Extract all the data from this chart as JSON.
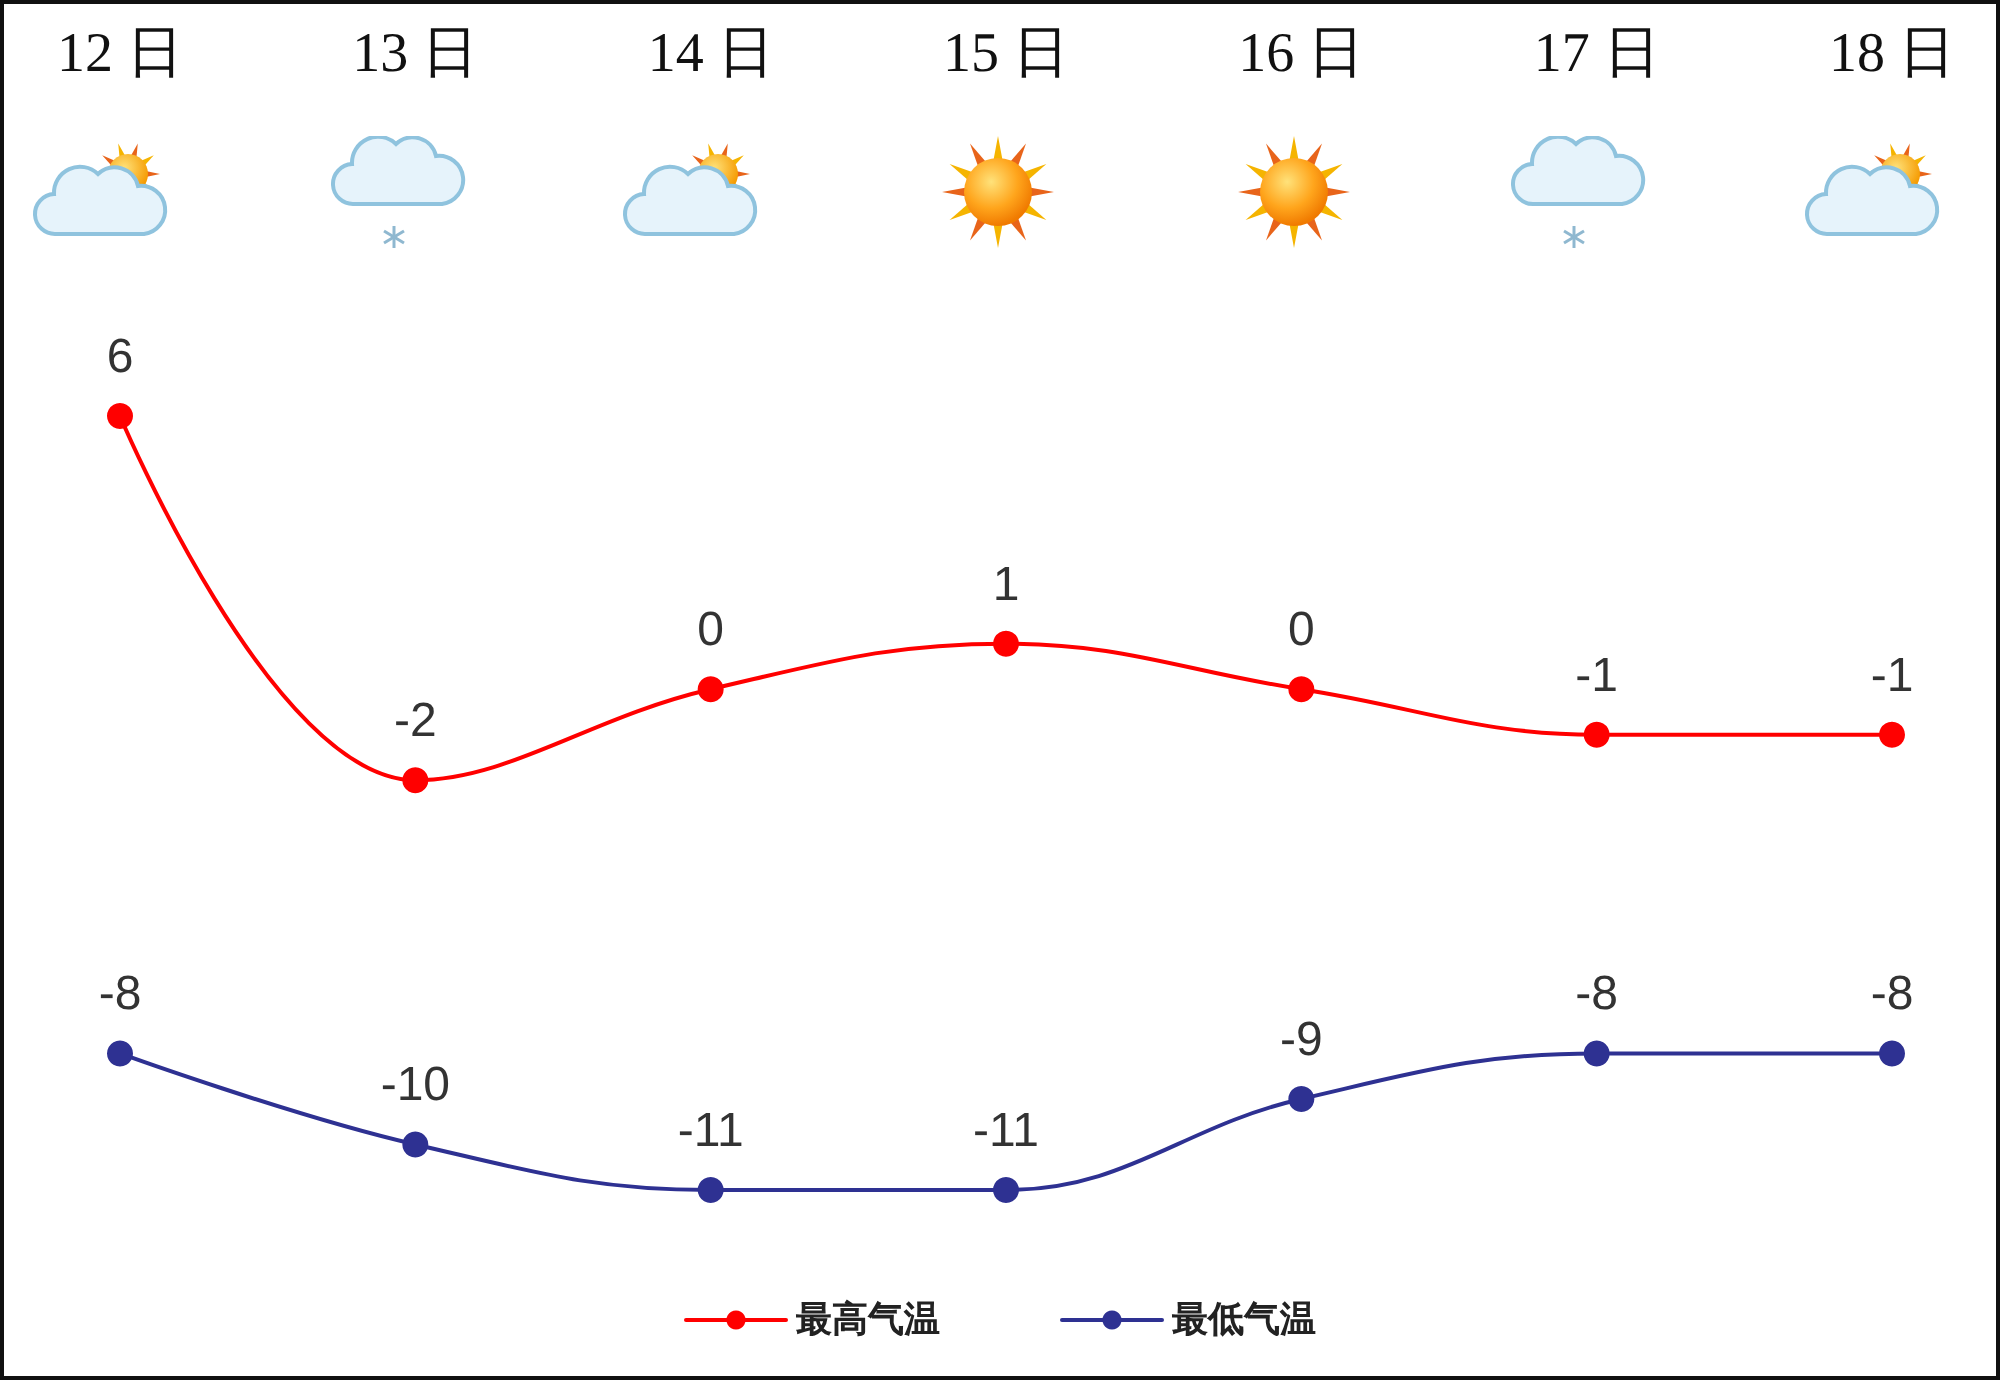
{
  "chart_data": {
    "type": "line",
    "categories": [
      "12 日",
      "13 日",
      "14 日",
      "15 日",
      "16 日",
      "17 日",
      "18 日"
    ],
    "series": [
      {
        "name": "最高气温",
        "color": "#ff0000",
        "values": [
          6,
          -2,
          0,
          1,
          0,
          -1,
          -1
        ]
      },
      {
        "name": "最低气温",
        "color": "#2e3192",
        "values": [
          -8,
          -10,
          -11,
          -11,
          -9,
          -8,
          -8
        ]
      }
    ],
    "data_labels": true,
    "legend": "bottom",
    "marker": "circle",
    "line_style": "solid",
    "tick_labels": "x"
  }
}
